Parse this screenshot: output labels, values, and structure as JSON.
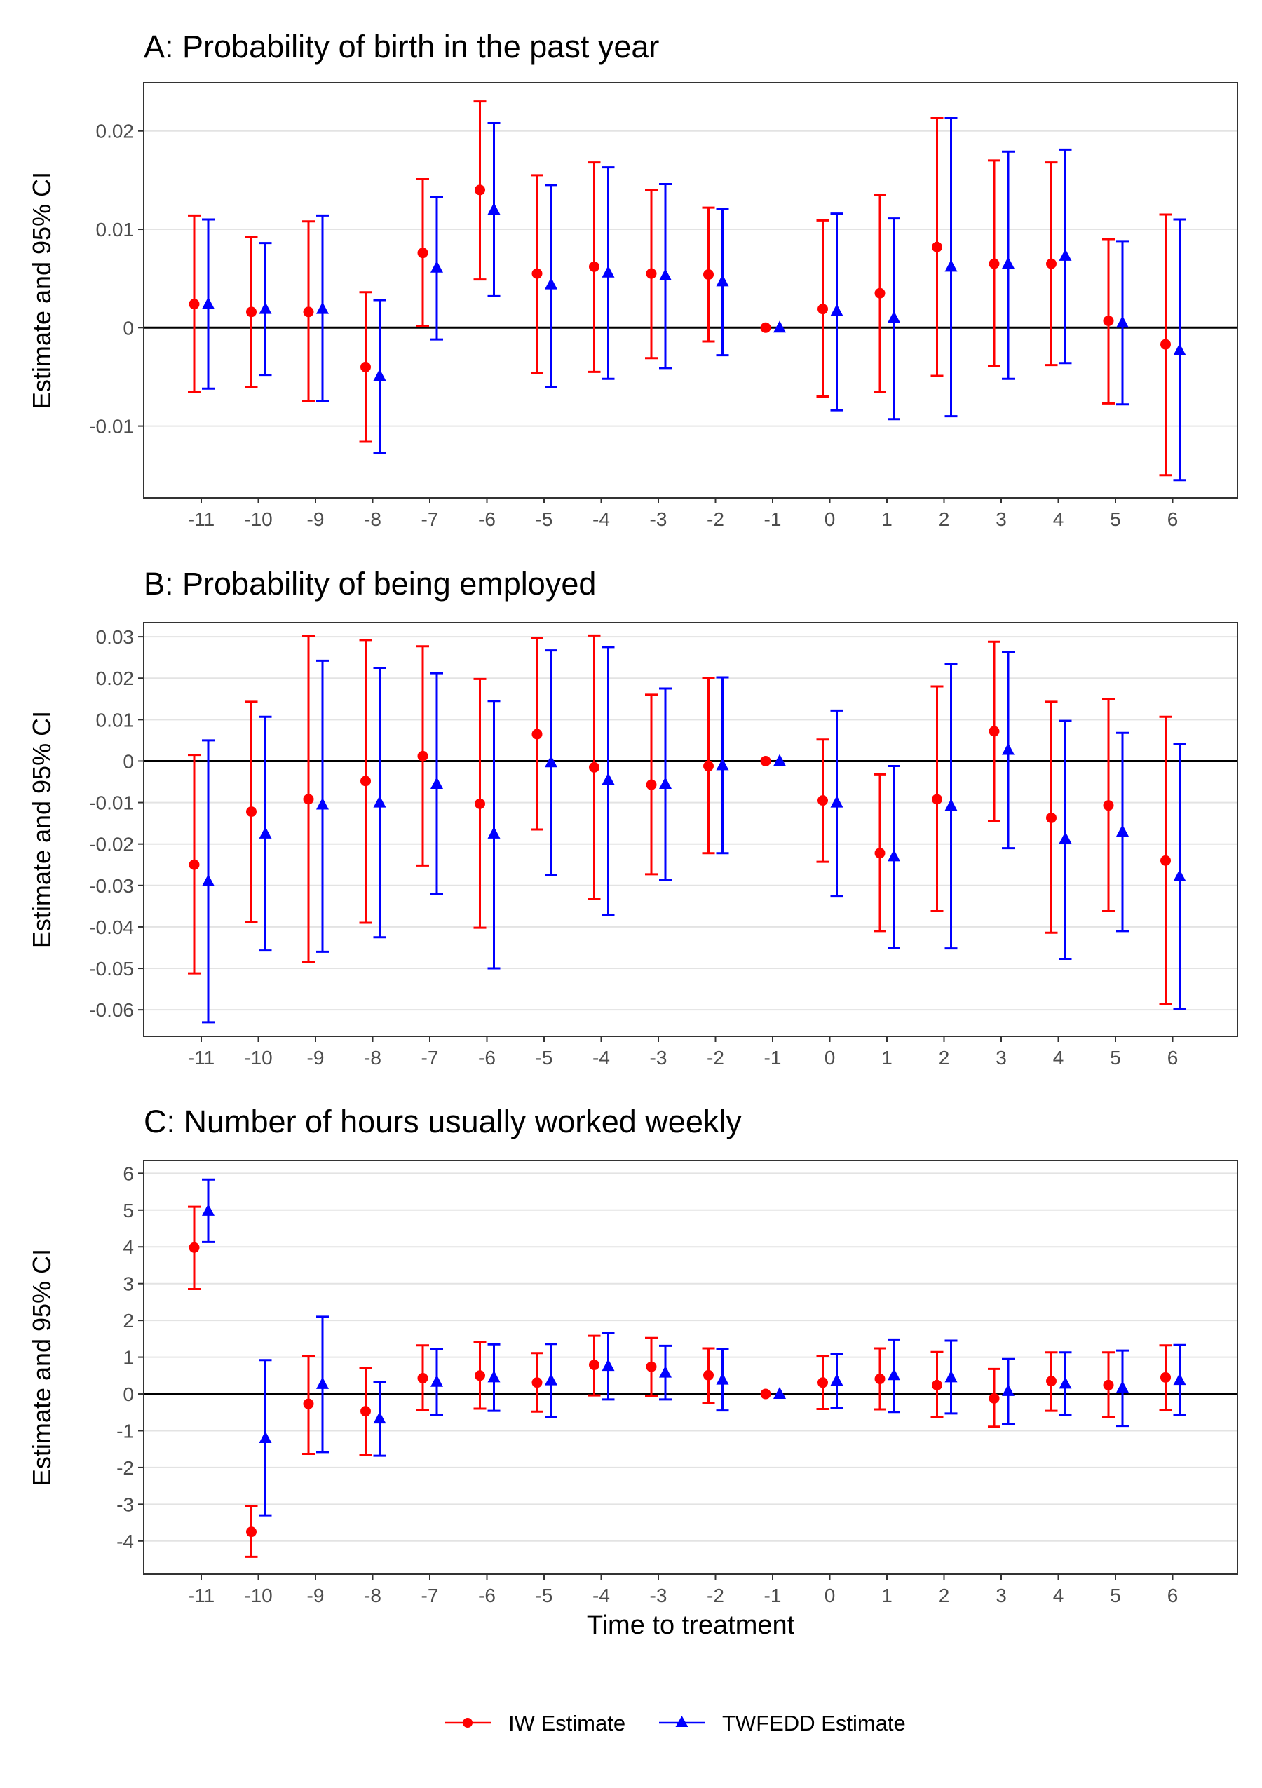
{
  "chart_data": [
    {
      "type": "scatter",
      "title": "A: Probability of birth in the past year",
      "xlabel": "",
      "ylabel": "Estimate and 95% CI",
      "x": [
        -11,
        -10,
        -9,
        -8,
        -7,
        -6,
        -5,
        -4,
        -3,
        -2,
        -1,
        0,
        1,
        2,
        3,
        4,
        5,
        6
      ],
      "xticks": [
        "-11",
        "-10",
        "-9",
        "-8",
        "-7",
        "-6",
        "-5",
        "-4",
        "-3",
        "-2",
        "-1",
        "0",
        "1",
        "2",
        "3",
        "4",
        "5",
        "6"
      ],
      "ylim": [
        -0.0173,
        0.0249
      ],
      "yticks": [
        -0.01,
        0,
        0.01,
        0.02
      ],
      "yticklabels": [
        "-0.01",
        "0",
        "0.01",
        "0.02"
      ],
      "series": [
        {
          "name": "IW Estimate",
          "color": "#ff0000",
          "marker": "circle",
          "values": [
            0.0024,
            0.0016,
            0.0016,
            -0.004,
            0.0076,
            0.014,
            0.0055,
            0.0062,
            0.0055,
            0.0054,
            0.0,
            0.0019,
            0.0035,
            0.0082,
            0.0065,
            0.0065,
            0.0007,
            -0.0017
          ],
          "lower": [
            -0.0065,
            -0.006,
            -0.0075,
            -0.0116,
            0.0002,
            0.0049,
            -0.0046,
            -0.0045,
            -0.0031,
            -0.0014,
            0.0,
            -0.007,
            -0.0065,
            -0.0049,
            -0.0039,
            -0.0038,
            -0.0077,
            -0.015
          ],
          "upper": [
            0.0114,
            0.0092,
            0.0108,
            0.0036,
            0.0151,
            0.023,
            0.0155,
            0.0168,
            0.014,
            0.0122,
            0.0,
            0.0109,
            0.0135,
            0.0213,
            0.017,
            0.0168,
            0.009,
            0.0115
          ]
        },
        {
          "name": "TWFEDD Estimate",
          "color": "#0000ff",
          "marker": "triangle",
          "values": [
            0.0024,
            0.0019,
            0.0019,
            -0.0049,
            0.0061,
            0.012,
            0.0044,
            0.0056,
            0.0053,
            0.0047,
            0.0,
            0.0017,
            0.001,
            0.0062,
            0.0065,
            0.0073,
            0.0005,
            -0.0023
          ],
          "lower": [
            -0.0062,
            -0.0048,
            -0.0075,
            -0.0127,
            -0.0012,
            0.0032,
            -0.006,
            -0.0052,
            -0.0041,
            -0.0028,
            0.0,
            -0.0084,
            -0.0093,
            -0.009,
            -0.0052,
            -0.0036,
            -0.0078,
            -0.0155
          ],
          "upper": [
            0.011,
            0.0086,
            0.0114,
            0.0028,
            0.0133,
            0.0208,
            0.0145,
            0.0163,
            0.0146,
            0.0121,
            0.0,
            0.0116,
            0.0111,
            0.0213,
            0.0179,
            0.0181,
            0.0088,
            0.011
          ]
        }
      ],
      "grid": true,
      "zero_line": true
    },
    {
      "type": "scatter",
      "title": "B: Probability of being employed",
      "xlabel": "",
      "ylabel": "Estimate and 95% CI",
      "x": [
        -11,
        -10,
        -9,
        -8,
        -7,
        -6,
        -5,
        -4,
        -3,
        -2,
        -1,
        0,
        1,
        2,
        3,
        4,
        5,
        6
      ],
      "xticks": [
        "-11",
        "-10",
        "-9",
        "-8",
        "-7",
        "-6",
        "-5",
        "-4",
        "-3",
        "-2",
        "-1",
        "0",
        "1",
        "2",
        "3",
        "4",
        "5",
        "6"
      ],
      "ylim": [
        -0.0664,
        0.0334
      ],
      "yticks": [
        -0.06,
        -0.05,
        -0.04,
        -0.03,
        -0.02,
        -0.01,
        0,
        0.01,
        0.02,
        0.03
      ],
      "yticklabels": [
        "-0.06",
        "-0.05",
        "-0.04",
        "-0.03",
        "-0.02",
        "-0.01",
        "0",
        "0.01",
        "0.02",
        "0.03"
      ],
      "series": [
        {
          "name": "IW Estimate",
          "color": "#ff0000",
          "marker": "circle",
          "values": [
            -0.025,
            -0.0122,
            -0.0092,
            -0.0048,
            0.0012,
            -0.0103,
            0.0065,
            -0.0015,
            -0.0057,
            -0.0012,
            0.0,
            -0.0095,
            -0.0222,
            -0.0092,
            0.0072,
            -0.0137,
            -0.0107,
            -0.024
          ],
          "lower": [
            -0.0512,
            -0.0388,
            -0.0485,
            -0.039,
            -0.0252,
            -0.0402,
            -0.0165,
            -0.0332,
            -0.0273,
            -0.0222,
            0.0,
            -0.0243,
            -0.041,
            -0.0362,
            -0.0145,
            -0.0414,
            -0.0362,
            -0.0587
          ],
          "upper": [
            0.0015,
            0.0143,
            0.0302,
            0.0292,
            0.0277,
            0.0198,
            0.0297,
            0.0303,
            0.016,
            0.02,
            0.0,
            0.0052,
            -0.0032,
            0.018,
            0.0288,
            0.0143,
            0.015,
            0.0107
          ]
        },
        {
          "name": "TWFEDD Estimate",
          "color": "#0000ff",
          "marker": "triangle",
          "values": [
            -0.029,
            -0.0175,
            -0.0105,
            -0.01,
            -0.0055,
            -0.0175,
            -0.0003,
            -0.0045,
            -0.0055,
            -0.001,
            0.0,
            -0.01,
            -0.023,
            -0.0108,
            0.0027,
            -0.0187,
            -0.017,
            -0.0278
          ],
          "lower": [
            -0.063,
            -0.0457,
            -0.046,
            -0.0425,
            -0.032,
            -0.05,
            -0.0275,
            -0.0372,
            -0.0287,
            -0.0222,
            0.0,
            -0.0325,
            -0.045,
            -0.0452,
            -0.021,
            -0.0477,
            -0.041,
            -0.0598
          ],
          "upper": [
            0.005,
            0.0107,
            0.0242,
            0.0225,
            0.0212,
            0.0145,
            0.0267,
            0.0275,
            0.0175,
            0.0202,
            0.0,
            0.0122,
            -0.0012,
            0.0235,
            0.0263,
            0.0097,
            0.0068,
            0.0042
          ]
        }
      ],
      "grid": true,
      "zero_line": true
    },
    {
      "type": "scatter",
      "title": "C: Number of hours usually worked weekly",
      "xlabel": "Time to treatment",
      "ylabel": "Estimate and 95% CI",
      "x": [
        -11,
        -10,
        -9,
        -8,
        -7,
        -6,
        -5,
        -4,
        -3,
        -2,
        -1,
        0,
        1,
        2,
        3,
        4,
        5,
        6
      ],
      "xticks": [
        "-11",
        "-10",
        "-9",
        "-8",
        "-7",
        "-6",
        "-5",
        "-4",
        "-3",
        "-2",
        "-1",
        "0",
        "1",
        "2",
        "3",
        "4",
        "5",
        "6"
      ],
      "ylim": [
        -4.9,
        6.35
      ],
      "yticks": [
        -4,
        -3,
        -2,
        -1,
        0,
        1,
        2,
        3,
        4,
        5,
        6
      ],
      "yticklabels": [
        "-4",
        "-3",
        "-2",
        "-1",
        "0",
        "1",
        "2",
        "3",
        "4",
        "5",
        "6"
      ],
      "series": [
        {
          "name": "IW Estimate",
          "color": "#ff0000",
          "marker": "circle",
          "values": [
            3.98,
            -3.75,
            -0.27,
            -0.47,
            0.43,
            0.5,
            0.31,
            0.79,
            0.74,
            0.51,
            0.0,
            0.31,
            0.41,
            0.24,
            -0.12,
            0.35,
            0.24,
            0.45
          ],
          "lower": [
            2.85,
            -4.43,
            -1.63,
            -1.66,
            -0.44,
            -0.4,
            -0.48,
            -0.04,
            -0.05,
            -0.25,
            0.0,
            -0.41,
            -0.42,
            -0.63,
            -0.89,
            -0.46,
            -0.62,
            -0.43
          ],
          "upper": [
            5.09,
            -3.04,
            1.04,
            0.7,
            1.32,
            1.41,
            1.11,
            1.58,
            1.52,
            1.24,
            0.0,
            1.03,
            1.24,
            1.14,
            0.68,
            1.13,
            1.13,
            1.32
          ]
        },
        {
          "name": "TWFEDD Estimate",
          "color": "#0000ff",
          "marker": "triangle",
          "values": [
            4.98,
            -1.2,
            0.27,
            -0.67,
            0.33,
            0.45,
            0.37,
            0.76,
            0.58,
            0.39,
            0.0,
            0.36,
            0.51,
            0.45,
            0.08,
            0.28,
            0.17,
            0.38
          ],
          "lower": [
            4.13,
            -3.3,
            -1.58,
            -1.68,
            -0.57,
            -0.46,
            -0.63,
            -0.15,
            -0.15,
            -0.45,
            0.0,
            -0.38,
            -0.49,
            -0.53,
            -0.81,
            -0.58,
            -0.87,
            -0.58
          ],
          "upper": [
            5.83,
            0.92,
            2.1,
            0.33,
            1.22,
            1.35,
            1.36,
            1.65,
            1.31,
            1.23,
            0.0,
            1.08,
            1.48,
            1.45,
            0.95,
            1.13,
            1.18,
            1.33
          ]
        }
      ],
      "grid": true,
      "zero_line": true
    }
  ],
  "legend": {
    "position": "bottom",
    "entries": [
      {
        "name": "IW Estimate",
        "color": "#ff0000",
        "marker": "circle"
      },
      {
        "name": "TWFEDD Estimate",
        "color": "#0000ff",
        "marker": "triangle"
      }
    ]
  }
}
